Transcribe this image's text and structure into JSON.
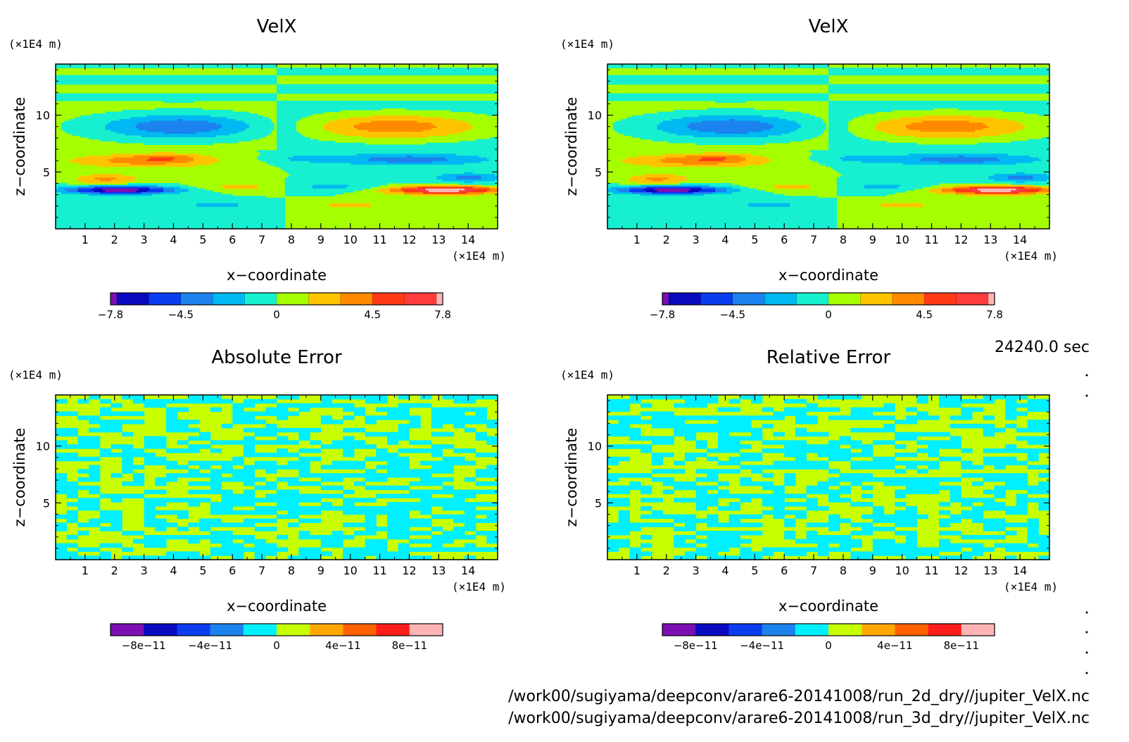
{
  "time_label": "24240.0 sec",
  "file_paths": [
    "/work00/sugiyama/deepconv/arare6-20141008/run_2d_dry//jupiter_VelX.nc",
    "/work00/sugiyama/deepconv/arare6-20141008/run_3d_dry//jupiter_VelX.nc"
  ],
  "colors": {
    "velx_levels": [
      "#7b0fb4",
      "#0a0ac0",
      "#0a3cf0",
      "#1c82ee",
      "#00b8f2",
      "#16f0d0",
      "#a6ff00",
      "#ffc400",
      "#ff8a00",
      "#ff3a14",
      "#ff3c3c",
      "#ffb4b4"
    ],
    "error_levels": [
      "#7b0fb4",
      "#0a0ac0",
      "#0a3cf0",
      "#1c82ee",
      "#00f0ff",
      "#c8ff00",
      "#ffa800",
      "#ff6000",
      "#ff1c1c",
      "#ffb4b4"
    ]
  },
  "chart_data": [
    {
      "type": "heatmap",
      "title": "VelX",
      "xlabel": "x−coordinate",
      "ylabel": "z−coordinate",
      "x_unit": "(×1E4 m)",
      "y_unit": "(×1E4 m)",
      "xlim": [
        0,
        15
      ],
      "ylim": [
        0,
        14.5
      ],
      "x_ticks": [
        "1",
        "2",
        "3",
        "4",
        "5",
        "6",
        "7",
        "8",
        "9",
        "10",
        "11",
        "12",
        "13",
        "14"
      ],
      "y_ticks": [
        "5",
        "10"
      ],
      "colorbar_ticks": [
        "−7.8",
        "−4.5",
        "0",
        "4.5",
        "7.8"
      ],
      "pattern": "velx"
    },
    {
      "type": "heatmap",
      "title": "VelX",
      "xlabel": "x−coordinate",
      "ylabel": "z−coordinate",
      "x_unit": "(×1E4 m)",
      "y_unit": "(×1E4 m)",
      "xlim": [
        0,
        15
      ],
      "ylim": [
        0,
        14.5
      ],
      "x_ticks": [
        "1",
        "2",
        "3",
        "4",
        "5",
        "6",
        "7",
        "8",
        "9",
        "10",
        "11",
        "12",
        "13",
        "14"
      ],
      "y_ticks": [
        "5",
        "10"
      ],
      "colorbar_ticks": [
        "−7.8",
        "−4.5",
        "0",
        "4.5",
        "7.8"
      ],
      "pattern": "velx"
    },
    {
      "type": "heatmap",
      "title": "Absolute Error",
      "xlabel": "x−coordinate",
      "ylabel": "z−coordinate",
      "x_unit": "(×1E4 m)",
      "y_unit": "(×1E4 m)",
      "xlim": [
        0,
        15
      ],
      "ylim": [
        0,
        14.5
      ],
      "x_ticks": [
        "1",
        "2",
        "3",
        "4",
        "5",
        "6",
        "7",
        "8",
        "9",
        "10",
        "11",
        "12",
        "13",
        "14"
      ],
      "y_ticks": [
        "5",
        "10"
      ],
      "colorbar_ticks": [
        "−8e−11",
        "−4e−11",
        "0",
        "4e−11",
        "8e−11"
      ],
      "pattern": "abs"
    },
    {
      "type": "heatmap",
      "title": "Relative Error",
      "xlabel": "x−coordinate",
      "ylabel": "z−coordinate",
      "x_unit": "(×1E4 m)",
      "y_unit": "(×1E4 m)",
      "xlim": [
        0,
        15
      ],
      "ylim": [
        0,
        14.5
      ],
      "x_ticks": [
        "1",
        "2",
        "3",
        "4",
        "5",
        "6",
        "7",
        "8",
        "9",
        "10",
        "11",
        "12",
        "13",
        "14"
      ],
      "y_ticks": [
        "5",
        "10"
      ],
      "colorbar_ticks": [
        "−8e−11",
        "−4e−11",
        "0",
        "4e−11",
        "8e−11"
      ],
      "pattern": "rel"
    }
  ]
}
